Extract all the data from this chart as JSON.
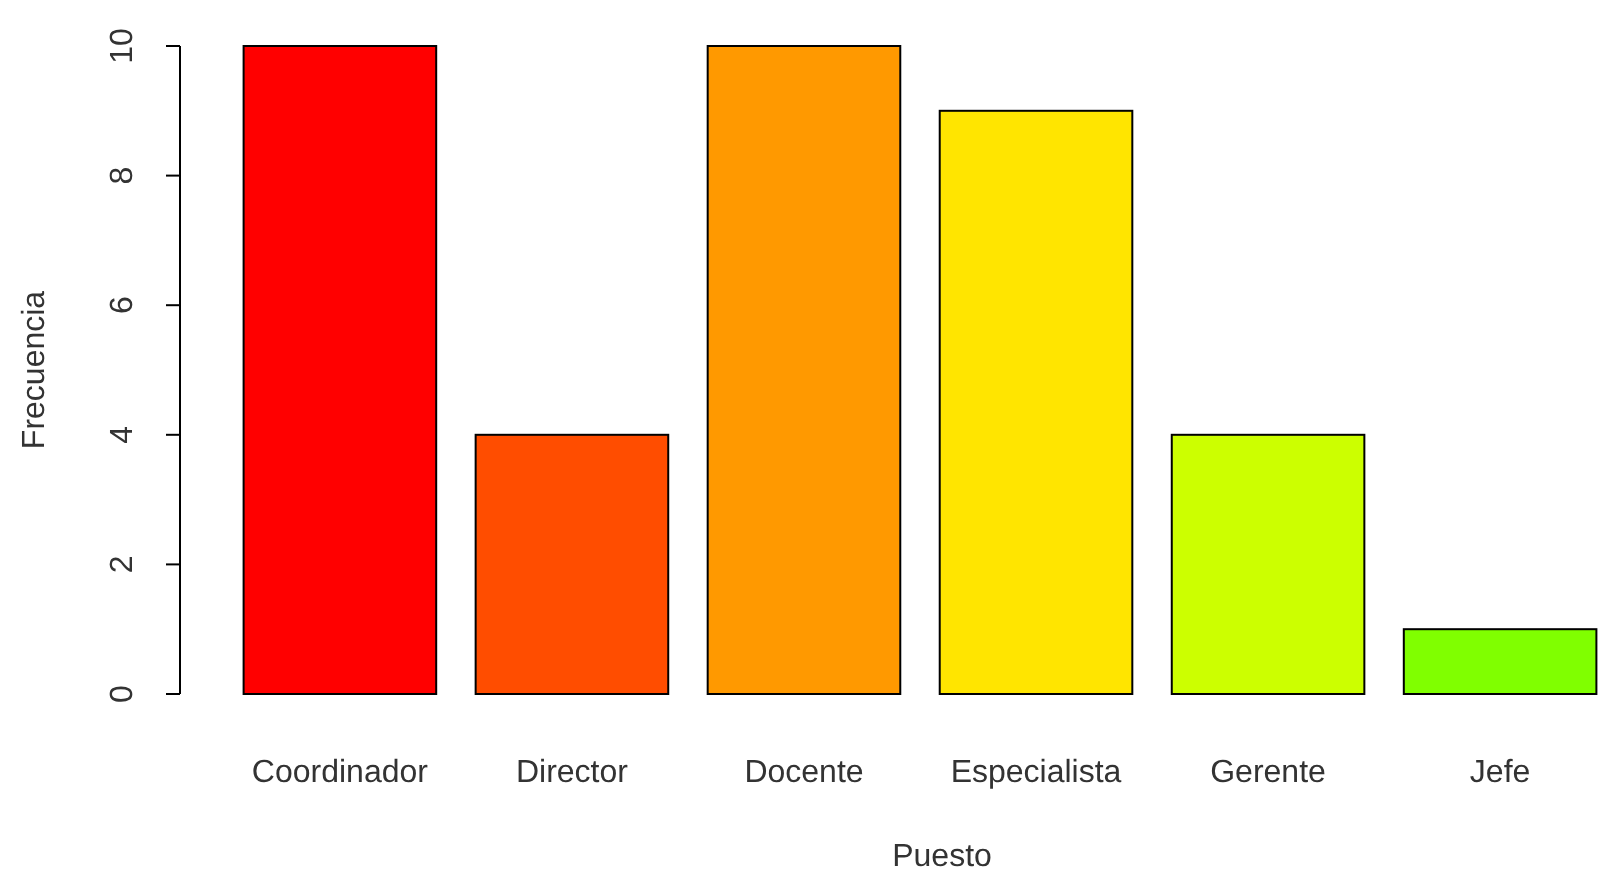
{
  "chart_data": {
    "type": "bar",
    "xlabel": "Puesto",
    "ylabel": "Frecuencia",
    "categories": [
      "Coordinador",
      "Director",
      "Docente",
      "Especialista",
      "Gerente",
      "Jefe"
    ],
    "values": [
      10,
      4,
      10,
      9,
      4,
      1
    ],
    "colors": [
      "#ff0000",
      "#ff4d00",
      "#ff9900",
      "#ffe500",
      "#ccff00",
      "#80ff00"
    ],
    "ylim": [
      0,
      10
    ],
    "yticks": [
      0,
      2,
      4,
      6,
      8,
      10
    ],
    "grid": false
  }
}
